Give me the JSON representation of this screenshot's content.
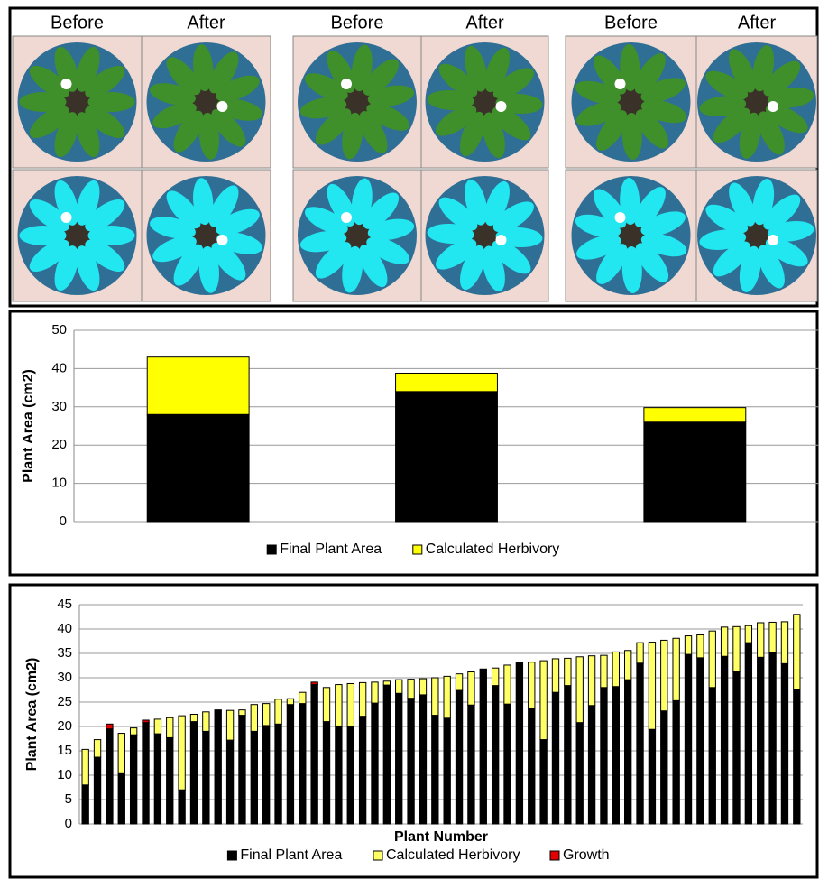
{
  "photos": {
    "labels": [
      "Before",
      "After",
      "Before",
      "After",
      "Before",
      "After"
    ]
  },
  "chart_data": [
    {
      "type": "stacked-bar",
      "ylabel": "Plant Area (cm2)",
      "categories": [
        null,
        null,
        null
      ],
      "series": [
        {
          "name": "Final Plant Area",
          "color": "#000000",
          "values": [
            28,
            34,
            26
          ]
        },
        {
          "name": "Calculated Herbivory",
          "color": "#ffff00",
          "values": [
            15,
            4.8,
            3.8
          ]
        }
      ],
      "ylim": [
        0,
        50
      ],
      "yticks": [
        0,
        10,
        20,
        30,
        40,
        50
      ],
      "grid": true,
      "legend": "bottom"
    },
    {
      "type": "stacked-bar",
      "ylabel": "Plant Area (cm2)",
      "xlabel": "Plant Number",
      "categories": [
        null,
        null,
        null,
        null,
        null,
        null,
        null,
        null,
        null,
        null,
        null,
        null,
        null,
        null,
        null,
        null,
        null,
        null,
        null,
        null,
        null,
        null,
        null,
        null,
        null,
        null,
        null,
        null,
        null,
        null,
        null,
        null,
        null,
        null,
        null,
        null,
        null,
        null,
        null,
        null,
        null,
        null,
        null,
        null,
        null,
        null,
        null,
        null,
        null,
        null,
        null,
        null,
        null,
        null,
        null,
        null,
        null,
        null,
        null,
        null
      ],
      "series": [
        {
          "name": "Final Plant Area",
          "color": "#000000",
          "values": [
            8,
            13.7,
            19.5,
            10.5,
            18.3,
            20.8,
            18.5,
            17.7,
            7,
            21,
            19,
            23.4,
            17.2,
            22.3,
            19,
            20.2,
            20.5,
            24.5,
            24.7,
            28.6,
            21,
            20.1,
            19.9,
            22.1,
            24.8,
            28.5,
            26.8,
            25.8,
            26.5,
            22.3,
            21.7,
            27.4,
            24.4,
            31.8,
            28.4,
            24.6,
            33.1,
            23.8,
            17.3,
            27,
            28.4,
            20.8,
            24.3,
            28,
            28.2,
            29.6,
            33,
            19.4,
            23.2,
            25.3,
            34.8,
            34.1,
            28,
            34.4,
            31.2,
            37.2,
            34.2,
            35.2,
            32.9,
            27.6
          ]
        },
        {
          "name": "Calculated Herbivory",
          "color": "#ffff66",
          "values": [
            7.3,
            3.6,
            0,
            8.1,
            1.4,
            0,
            3,
            4.1,
            15.2,
            1.5,
            4,
            0,
            6.1,
            1.1,
            5.5,
            4.5,
            5.1,
            1.2,
            2.3,
            0,
            7,
            8.5,
            8.9,
            6.9,
            4.3,
            0.8,
            2.8,
            3.9,
            3.3,
            7.7,
            8.6,
            3.4,
            6.8,
            0,
            3.6,
            8,
            0,
            9.4,
            16.2,
            6.9,
            5.6,
            13.5,
            10.2,
            6.6,
            7.1,
            6,
            4.2,
            17.9,
            14.5,
            12.8,
            3.8,
            4.7,
            11.6,
            6,
            9.3,
            3.5,
            7.1,
            6.2,
            8.6,
            15.4
          ]
        },
        {
          "name": "Growth",
          "color": "#e00000",
          "values": [
            0,
            0,
            1,
            0,
            0,
            0.5,
            0,
            0,
            0,
            0,
            0,
            0,
            0,
            0,
            0,
            0,
            0,
            0,
            0,
            0.5,
            0,
            0,
            0,
            0,
            0,
            0,
            0,
            0,
            0,
            0,
            0,
            0,
            0,
            0,
            0,
            0,
            0,
            0,
            0,
            0,
            0,
            0,
            0,
            0,
            0,
            0,
            0,
            0,
            0,
            0,
            0,
            0,
            0,
            0,
            0,
            0,
            0,
            0,
            0,
            0
          ]
        }
      ],
      "ylim": [
        0,
        45
      ],
      "yticks": [
        0,
        5,
        10,
        15,
        20,
        25,
        30,
        35,
        40,
        45
      ],
      "grid": true,
      "legend": "bottom"
    }
  ]
}
